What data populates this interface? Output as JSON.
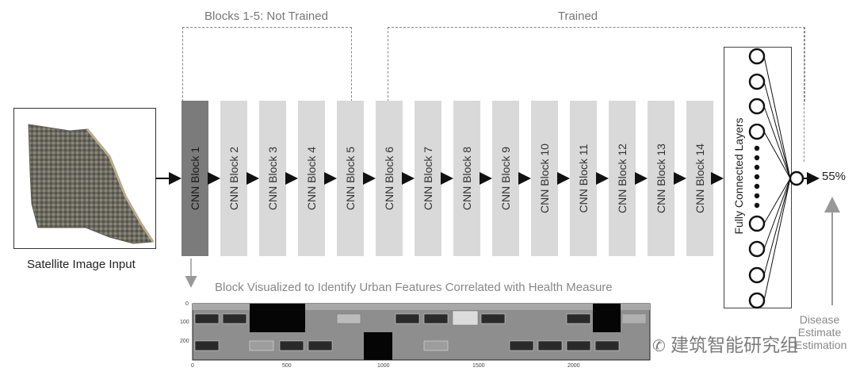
{
  "brackets": {
    "not_trained": "Blocks 1-5: Not Trained",
    "trained": "Trained"
  },
  "input": {
    "caption": "Satellite Image Input"
  },
  "blocks": [
    {
      "label": "CNN Block 1"
    },
    {
      "label": "CNN Block 2"
    },
    {
      "label": "CNN Block 3"
    },
    {
      "label": "CNN Block 4"
    },
    {
      "label": "CNN Block 5"
    },
    {
      "label": "CNN Block 6"
    },
    {
      "label": "CNN Block 7"
    },
    {
      "label": "CNN Block 8"
    },
    {
      "label": "CNN Block 9"
    },
    {
      "label": "CNN Block 10"
    },
    {
      "label": "CNN Block 11"
    },
    {
      "label": "CNN Block 12"
    },
    {
      "label": "CNN Block 13"
    },
    {
      "label": "CNN Block 14"
    }
  ],
  "fc": {
    "label": "Fully Connected Layers"
  },
  "output": {
    "value": "55%",
    "label_line1": "Disease",
    "label_line2": "Estimate",
    "label_line3": "Estimation"
  },
  "visualization": {
    "label": "Block Visualized to Identify Urban Features Correlated with Health Measure",
    "y_ticks": [
      "0",
      "100",
      "200"
    ],
    "x_ticks": [
      "0",
      "500",
      "1000",
      "1500",
      "2000"
    ]
  },
  "watermark": "建筑智能研究组",
  "colors": {
    "block_dark": "#7b7b7b",
    "block_light": "#d9d9d9",
    "arrow": "#111111",
    "bracket": "#888888"
  }
}
